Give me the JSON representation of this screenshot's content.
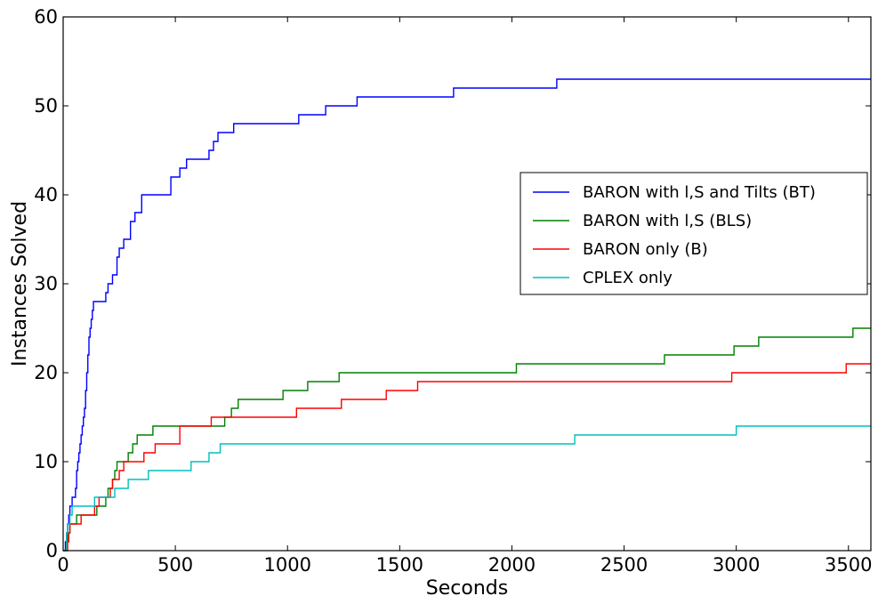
{
  "chart_data": {
    "type": "line",
    "xlabel": "Seconds",
    "ylabel": "Instances Solved",
    "xlim": [
      0,
      3600
    ],
    "ylim": [
      0,
      60
    ],
    "xticks": [
      0,
      500,
      1000,
      1500,
      2000,
      2500,
      3000,
      3500
    ],
    "yticks": [
      0,
      10,
      20,
      30,
      40,
      50,
      60
    ],
    "grid": false,
    "legend_position": "center-right",
    "series": [
      {
        "name": "BARON with l,S and Tilts (BT)",
        "color": "#0000ff",
        "points": [
          [
            0,
            0
          ],
          [
            10,
            1
          ],
          [
            15,
            2
          ],
          [
            20,
            3
          ],
          [
            25,
            4
          ],
          [
            30,
            5
          ],
          [
            40,
            6
          ],
          [
            55,
            7
          ],
          [
            60,
            9
          ],
          [
            65,
            10
          ],
          [
            70,
            11
          ],
          [
            75,
            12
          ],
          [
            80,
            13
          ],
          [
            85,
            14
          ],
          [
            90,
            15
          ],
          [
            95,
            16
          ],
          [
            100,
            18
          ],
          [
            105,
            20
          ],
          [
            110,
            22
          ],
          [
            115,
            24
          ],
          [
            120,
            25
          ],
          [
            125,
            26
          ],
          [
            130,
            27
          ],
          [
            135,
            28
          ],
          [
            190,
            29
          ],
          [
            200,
            30
          ],
          [
            220,
            31
          ],
          [
            240,
            33
          ],
          [
            250,
            34
          ],
          [
            270,
            35
          ],
          [
            300,
            37
          ],
          [
            320,
            38
          ],
          [
            350,
            40
          ],
          [
            480,
            42
          ],
          [
            520,
            43
          ],
          [
            550,
            44
          ],
          [
            650,
            45
          ],
          [
            670,
            46
          ],
          [
            690,
            47
          ],
          [
            760,
            48
          ],
          [
            1050,
            49
          ],
          [
            1170,
            50
          ],
          [
            1310,
            51
          ],
          [
            1740,
            52
          ],
          [
            2200,
            53
          ],
          [
            3600,
            53
          ]
        ]
      },
      {
        "name": "BARON with l,S (BLS)",
        "color": "#008000",
        "points": [
          [
            0,
            0
          ],
          [
            15,
            1
          ],
          [
            20,
            2
          ],
          [
            30,
            3
          ],
          [
            60,
            4
          ],
          [
            150,
            5
          ],
          [
            190,
            6
          ],
          [
            200,
            7
          ],
          [
            220,
            8
          ],
          [
            230,
            9
          ],
          [
            240,
            10
          ],
          [
            290,
            11
          ],
          [
            310,
            12
          ],
          [
            330,
            13
          ],
          [
            400,
            14
          ],
          [
            720,
            15
          ],
          [
            750,
            16
          ],
          [
            780,
            17
          ],
          [
            980,
            18
          ],
          [
            1090,
            19
          ],
          [
            1230,
            20
          ],
          [
            2020,
            21
          ],
          [
            2680,
            22
          ],
          [
            2990,
            23
          ],
          [
            3100,
            24
          ],
          [
            3520,
            25
          ],
          [
            3600,
            25
          ]
        ]
      },
      {
        "name": "BARON only (B)",
        "color": "#ff0000",
        "points": [
          [
            0,
            0
          ],
          [
            20,
            1
          ],
          [
            25,
            2
          ],
          [
            30,
            3
          ],
          [
            80,
            4
          ],
          [
            140,
            5
          ],
          [
            160,
            6
          ],
          [
            210,
            7
          ],
          [
            220,
            8
          ],
          [
            250,
            9
          ],
          [
            270,
            10
          ],
          [
            360,
            11
          ],
          [
            410,
            12
          ],
          [
            520,
            14
          ],
          [
            660,
            15
          ],
          [
            1040,
            16
          ],
          [
            1240,
            17
          ],
          [
            1440,
            18
          ],
          [
            1580,
            19
          ],
          [
            2980,
            20
          ],
          [
            3490,
            21
          ],
          [
            3600,
            21
          ]
        ]
      },
      {
        "name": "CPLEX only",
        "color": "#00bfbf",
        "points": [
          [
            0,
            0
          ],
          [
            15,
            2
          ],
          [
            20,
            3
          ],
          [
            30,
            4
          ],
          [
            40,
            5
          ],
          [
            140,
            6
          ],
          [
            230,
            7
          ],
          [
            290,
            8
          ],
          [
            380,
            9
          ],
          [
            570,
            10
          ],
          [
            650,
            11
          ],
          [
            700,
            12
          ],
          [
            1040,
            12
          ],
          [
            2280,
            13
          ],
          [
            3000,
            14
          ],
          [
            3600,
            14
          ]
        ]
      }
    ]
  }
}
